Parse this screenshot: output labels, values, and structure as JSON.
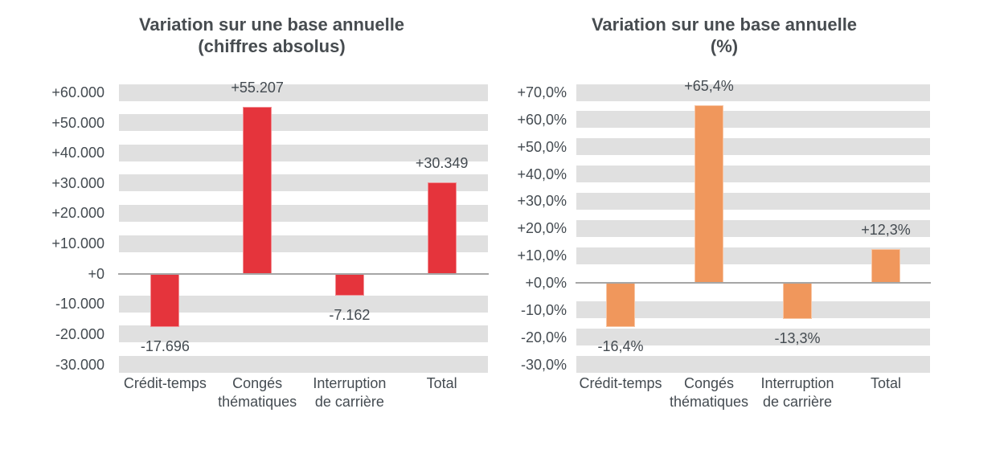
{
  "figure": {
    "background_color": "#ffffff",
    "band_color": "#e0e0e0",
    "axis_line_color": "#a6a6a6",
    "text_color": "#444b51"
  },
  "chart_data": [
    {
      "type": "bar",
      "title": "Variation sur une base annuelle",
      "subtitle": "(chiffres absolus)",
      "bar_color": "#e5343c",
      "categories": [
        "Crédit-temps",
        "Congés\nthématiques",
        "Interruption\nde carrière",
        "Total"
      ],
      "values": [
        -17696,
        55207,
        -7162,
        30349
      ],
      "data_labels": [
        "-17.696",
        "+55.207",
        "-7.162",
        "+30.349"
      ],
      "ylim": [
        -30000,
        60000
      ],
      "grid": "striped-bands",
      "legend": "none",
      "y_ticks": [
        {
          "value": 60000,
          "label": "+60.000"
        },
        {
          "value": 50000,
          "label": "+50.000"
        },
        {
          "value": 40000,
          "label": "+40.000"
        },
        {
          "value": 30000,
          "label": "+30.000"
        },
        {
          "value": 20000,
          "label": "+20.000"
        },
        {
          "value": 10000,
          "label": "+10.000"
        },
        {
          "value": 0,
          "label": "+0"
        },
        {
          "value": -10000,
          "label": "-10.000"
        },
        {
          "value": -20000,
          "label": "-20.000"
        },
        {
          "value": -30000,
          "label": "-30.000"
        }
      ]
    },
    {
      "type": "bar",
      "title": "Variation sur une base annuelle",
      "subtitle": "(%)",
      "bar_color": "#f0975c",
      "categories": [
        "Crédit-temps",
        "Congés\nthématiques",
        "Interruption\nde carrière",
        "Total"
      ],
      "values": [
        -16.4,
        65.4,
        -13.3,
        12.3
      ],
      "data_labels": [
        "-16,4%",
        "+65,4%",
        "-13,3%",
        "+12,3%"
      ],
      "ylim": [
        -30,
        70
      ],
      "grid": "striped-bands",
      "legend": "none",
      "y_ticks": [
        {
          "value": 70,
          "label": "+70,0%"
        },
        {
          "value": 60,
          "label": "+60,0%"
        },
        {
          "value": 50,
          "label": "+50,0%"
        },
        {
          "value": 40,
          "label": "+40,0%"
        },
        {
          "value": 30,
          "label": "+30,0%"
        },
        {
          "value": 20,
          "label": "+20,0%"
        },
        {
          "value": 10,
          "label": "+10,0%"
        },
        {
          "value": 0,
          "label": "+0,0%"
        },
        {
          "value": -10,
          "label": "-10,0%"
        },
        {
          "value": -20,
          "label": "-20,0%"
        },
        {
          "value": -30,
          "label": "-30,0%"
        }
      ]
    }
  ]
}
